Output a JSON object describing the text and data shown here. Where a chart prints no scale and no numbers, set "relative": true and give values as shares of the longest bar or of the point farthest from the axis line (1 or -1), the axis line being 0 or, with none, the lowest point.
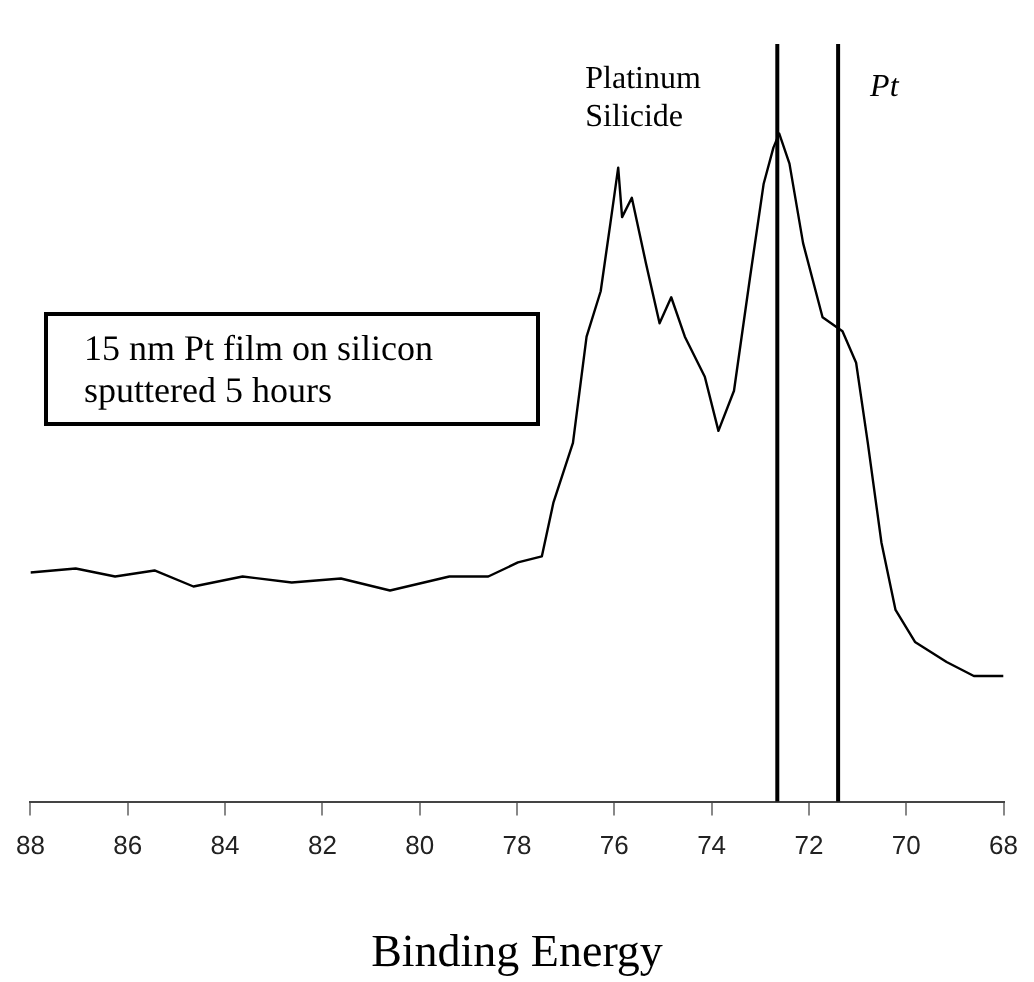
{
  "chart_data": {
    "type": "line",
    "relative": true,
    "xlabel": "Binding Energy",
    "xlim": [
      88,
      68
    ],
    "xticks": [
      88,
      86,
      84,
      82,
      80,
      78,
      76,
      74,
      72,
      70,
      68
    ],
    "grid": false,
    "legend": false,
    "marker": "none",
    "tick_labels": "x",
    "x": [
      88,
      87.07,
      86.26,
      85.45,
      84.65,
      83.64,
      82.63,
      81.62,
      80.61,
      79.39,
      78.59,
      77.98,
      77.49,
      77.25,
      76.85,
      76.57,
      76.28,
      76.08,
      75.92,
      75.84,
      75.64,
      75.35,
      75.07,
      74.83,
      74.55,
      74.14,
      73.86,
      73.54,
      73.21,
      72.93,
      72.73,
      72.61,
      72.4,
      72.12,
      71.72,
      71.31,
      71.03,
      70.79,
      70.51,
      70.22,
      69.82,
      69.17,
      68.61,
      68
    ],
    "series": [
      {
        "color": "#000000",
        "values": [
          0.343,
          0.349,
          0.337,
          0.346,
          0.322,
          0.337,
          0.328,
          0.334,
          0.316,
          0.337,
          0.337,
          0.358,
          0.367,
          0.448,
          0.537,
          0.696,
          0.764,
          0.866,
          0.949,
          0.875,
          0.904,
          0.806,
          0.716,
          0.755,
          0.696,
          0.636,
          0.555,
          0.615,
          0.785,
          0.925,
          0.979,
          1,
          0.955,
          0.836,
          0.725,
          0.704,
          0.657,
          0.537,
          0.388,
          0.287,
          0.239,
          0.209,
          0.188,
          0.188
        ]
      }
    ],
    "ref_lines": [
      {
        "axis": "x",
        "value": 72.65,
        "label": "Platinum Silicide",
        "color": "#000000"
      },
      {
        "axis": "x",
        "value": 71.4,
        "label": "Pt",
        "color": "#000000"
      }
    ],
    "annotations": [
      "15 nm Pt film on silicon\nsputtered 5 hours"
    ]
  }
}
